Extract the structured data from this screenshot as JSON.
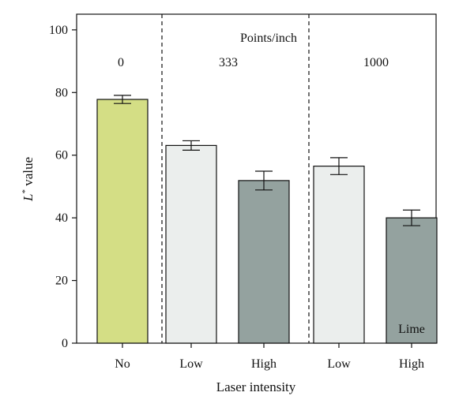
{
  "chart_data": {
    "type": "bar",
    "xlabel": "Laser intensity",
    "ylabel_main": "L",
    "ylabel_sup": "*",
    "ylabel_rest": " value",
    "ylim": [
      0,
      105
    ],
    "yticks": [
      0,
      20,
      40,
      60,
      80,
      100
    ],
    "categories": [
      "No",
      "Low",
      "High",
      "Low",
      "High"
    ],
    "values": [
      77.8,
      63.1,
      51.9,
      56.5,
      40.0
    ],
    "errors": [
      1.3,
      1.5,
      3.0,
      2.7,
      2.5
    ],
    "bar_colors": [
      "#d4de85",
      "#ebeeed",
      "#94a29f",
      "#ebeeed",
      "#94a29f"
    ],
    "group_header": "Points/inch",
    "group_labels": [
      "0",
      "333",
      "1000"
    ],
    "group_spans": [
      [
        0,
        0
      ],
      [
        1,
        2
      ],
      [
        3,
        4
      ]
    ],
    "annotation": {
      "text": "Lime",
      "bar_index": 4
    },
    "grid": false
  }
}
